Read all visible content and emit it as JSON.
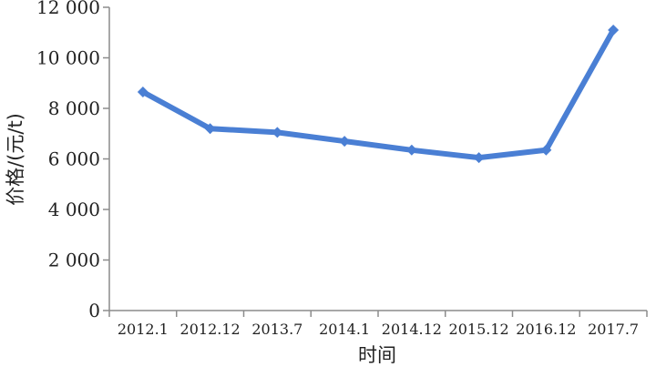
{
  "chart_data": {
    "type": "line",
    "categories": [
      "2012.1",
      "2012.12",
      "2013.7",
      "2014.1",
      "2014.12",
      "2015.12",
      "2016.12",
      "2017.7"
    ],
    "series": [
      {
        "values": [
          8650,
          7200,
          7050,
          6700,
          6350,
          6050,
          6350,
          11100
        ]
      }
    ],
    "title": "",
    "xlabel": "时间",
    "ylabel": "价格/(元/t)",
    "ylim": [
      0,
      12000
    ],
    "yticks": [
      0,
      2000,
      4000,
      6000,
      8000,
      10000,
      12000
    ],
    "ytick_labels": [
      "0",
      "2 000",
      "4 000",
      "6 000",
      "8 000",
      "10 000",
      "12 000"
    ],
    "grid": false,
    "legend": "none",
    "line_color": "#4a7fd4",
    "axis_color": "#8c8c8c"
  }
}
